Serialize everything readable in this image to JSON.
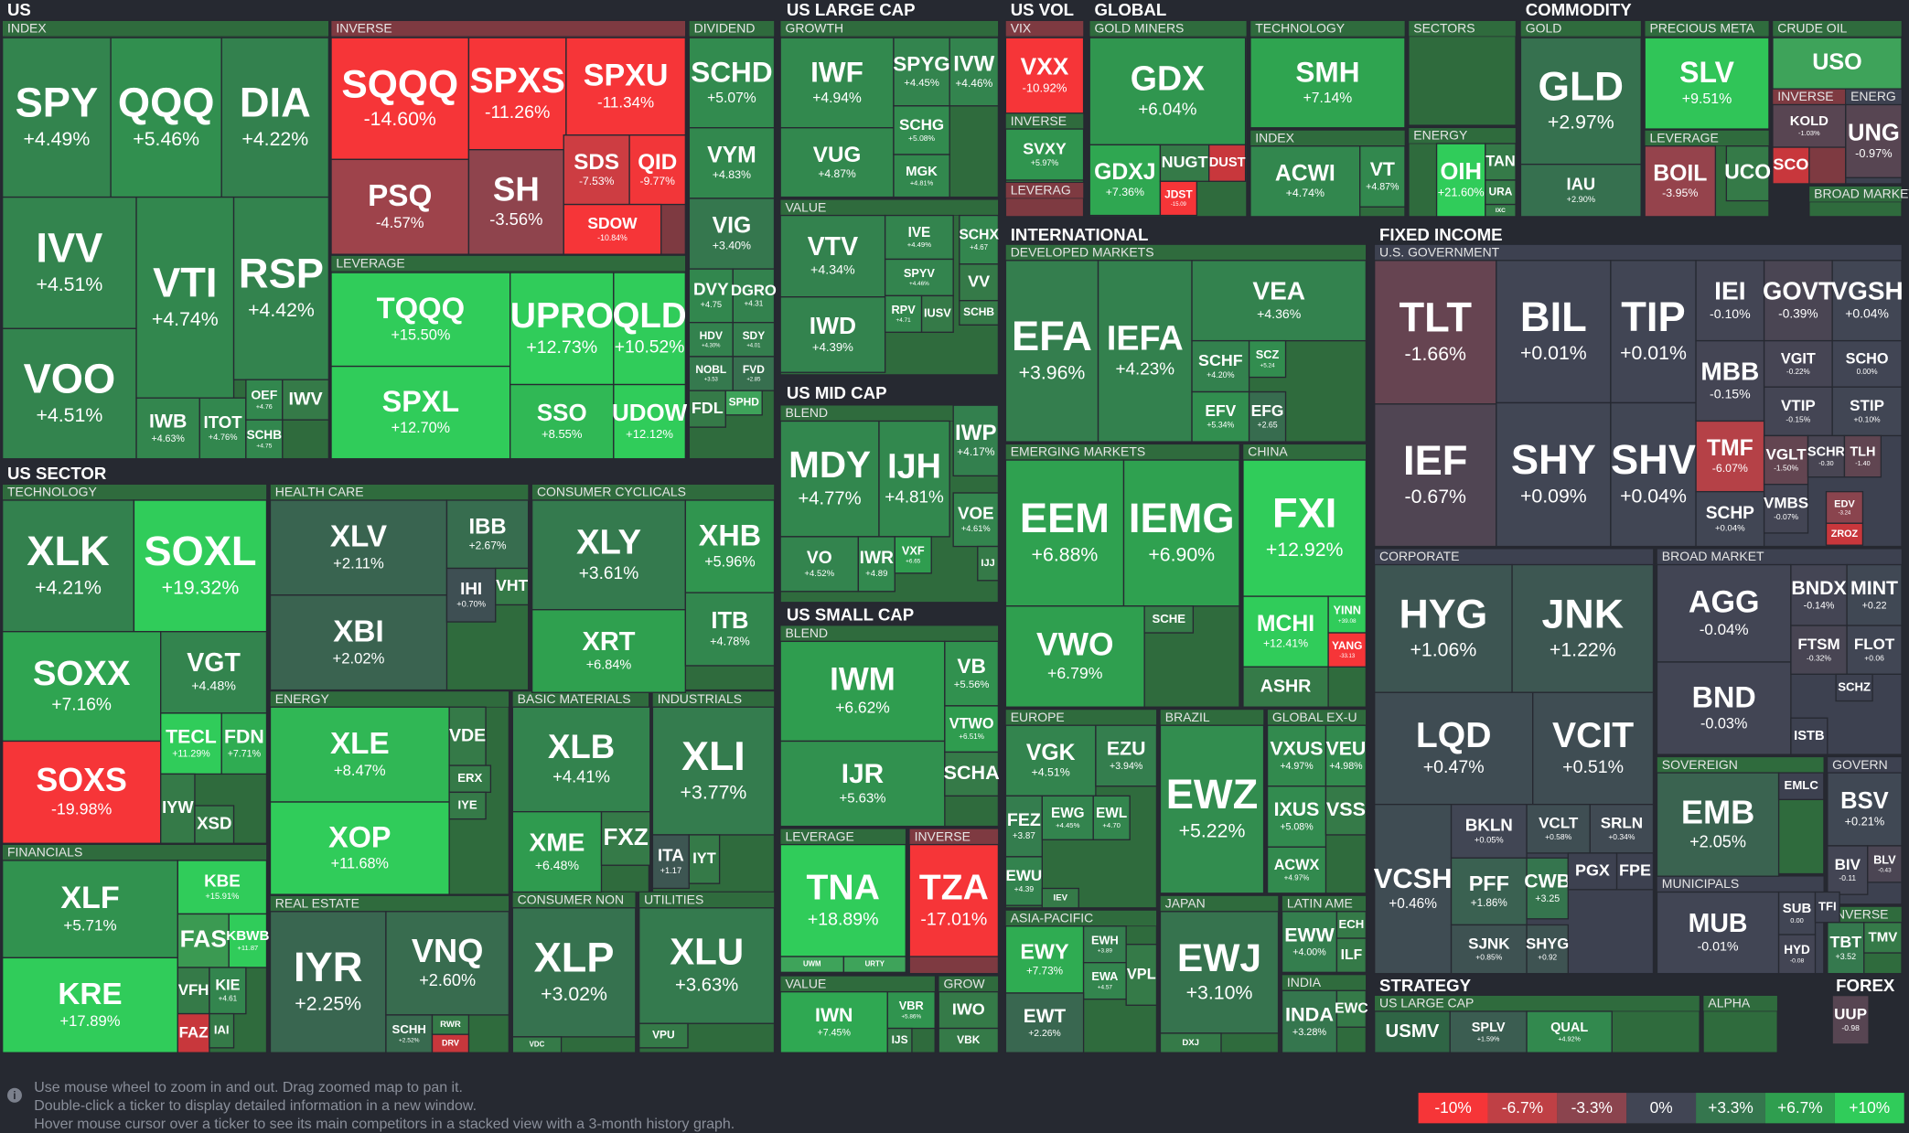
{
  "sections": [
    {
      "title": "US"
    },
    {
      "title": "US SECTOR"
    },
    {
      "title": "US LARGE CAP"
    },
    {
      "title": "US MID CAP"
    },
    {
      "title": "US SMALL CAP"
    },
    {
      "title": "US VOL"
    },
    {
      "title": "GLOBAL"
    },
    {
      "title": "COMMODITY"
    },
    {
      "title": "INTERNATIONAL"
    },
    {
      "title": "FIXED INCOME"
    },
    {
      "title": "STRATEGY"
    },
    {
      "title": "FOREX"
    }
  ],
  "groups": [
    {
      "label": "INDEX"
    },
    {
      "label": "INVERSE"
    },
    {
      "label": "LEVERAGE"
    },
    {
      "label": "DIVIDEND"
    },
    {
      "label": "TECHNOLOGY"
    },
    {
      "label": "FINANCIALS"
    },
    {
      "label": "HEALTH CARE"
    },
    {
      "label": "ENERGY"
    },
    {
      "label": "CONSUMER CYCLICALS"
    },
    {
      "label": "BASIC MATERIALS"
    },
    {
      "label": "INDUSTRIALS"
    },
    {
      "label": "REAL ESTATE"
    },
    {
      "label": "CONSUMER NON"
    },
    {
      "label": "UTILITIES"
    },
    {
      "label": "GROWTH"
    },
    {
      "label": "VALUE"
    },
    {
      "label": "BLEND"
    },
    {
      "label": "BLEND"
    },
    {
      "label": "LEVERAGE"
    },
    {
      "label": "INVERSE"
    },
    {
      "label": "VALUE"
    },
    {
      "label": "GROW"
    },
    {
      "label": "VIX"
    },
    {
      "label": "INVERSE"
    },
    {
      "label": "LEVERAG"
    },
    {
      "label": "GOLD MINERS"
    },
    {
      "label": "TECHNOLOGY"
    },
    {
      "label": "INDEX"
    },
    {
      "label": "SECTORS"
    },
    {
      "label": "ENERGY"
    },
    {
      "label": "GOLD"
    },
    {
      "label": "PRECIOUS META"
    },
    {
      "label": "LEVERAGE"
    },
    {
      "label": "CRUDE OIL"
    },
    {
      "label": "INVERSE"
    },
    {
      "label": "ENERG"
    },
    {
      "label": "BROAD MARKET"
    },
    {
      "label": "DEVELOPED MARKETS"
    },
    {
      "label": "EMERGING MARKETS"
    },
    {
      "label": "CHINA"
    },
    {
      "label": "EUROPE"
    },
    {
      "label": "BRAZIL"
    },
    {
      "label": "GLOBAL EX-U"
    },
    {
      "label": "ASIA-PACIFIC"
    },
    {
      "label": "JAPAN"
    },
    {
      "label": "LATIN AME"
    },
    {
      "label": "INDIA"
    },
    {
      "label": "U.S. GOVERNMENT"
    },
    {
      "label": "CORPORATE"
    },
    {
      "label": "BROAD MARKET"
    },
    {
      "label": "SOVEREIGN"
    },
    {
      "label": "GOVERN"
    },
    {
      "label": "MUNICIPALS"
    },
    {
      "label": "INVERSE"
    },
    {
      "label": "US LARGE CAP"
    },
    {
      "label": "ALPHA"
    }
  ],
  "tiles": [
    {
      "ticker": "SPY",
      "change": "+4.49%"
    },
    {
      "ticker": "QQQ",
      "change": "+5.46%"
    },
    {
      "ticker": "DIA",
      "change": "+4.22%"
    },
    {
      "ticker": "IVV",
      "change": "+4.51%"
    },
    {
      "ticker": "VOO",
      "change": "+4.51%"
    },
    {
      "ticker": "VTI",
      "change": "+4.74%"
    },
    {
      "ticker": "RSP",
      "change": "+4.42%"
    },
    {
      "ticker": "IWB",
      "change": "+4.63%"
    },
    {
      "ticker": "ITOT",
      "change": "+4.76%"
    },
    {
      "ticker": "OEF",
      "change": "+4.76"
    },
    {
      "ticker": "IWV"
    },
    {
      "ticker": "SCHB",
      "change": "+4.75"
    },
    {
      "ticker": "SQQQ",
      "change": "-14.60%"
    },
    {
      "ticker": "SPXS",
      "change": "-11.26%"
    },
    {
      "ticker": "SPXU",
      "change": "-11.34%"
    },
    {
      "ticker": "PSQ",
      "change": "-4.57%"
    },
    {
      "ticker": "SH",
      "change": "-3.56%"
    },
    {
      "ticker": "SDS",
      "change": "-7.53%"
    },
    {
      "ticker": "QID",
      "change": "-9.77%"
    },
    {
      "ticker": "SDOW",
      "change": "-10.84%"
    },
    {
      "ticker": "TQQQ",
      "change": "+15.50%"
    },
    {
      "ticker": "SPXL",
      "change": "+12.70%"
    },
    {
      "ticker": "UPRO",
      "change": "+12.73%"
    },
    {
      "ticker": "QLD",
      "change": "+10.52%"
    },
    {
      "ticker": "SSO",
      "change": "+8.55%"
    },
    {
      "ticker": "UDOW",
      "change": "+12.12%"
    },
    {
      "ticker": "SCHD",
      "change": "+5.07%"
    },
    {
      "ticker": "VYM",
      "change": "+4.83%"
    },
    {
      "ticker": "VIG",
      "change": "+3.40%"
    },
    {
      "ticker": "DVY",
      "change": "+4.75"
    },
    {
      "ticker": "DGRO",
      "change": "+4.31"
    },
    {
      "ticker": "HDV",
      "change": "+4.30%"
    },
    {
      "ticker": "SDY",
      "change": "+4.01"
    },
    {
      "ticker": "NOBL",
      "change": "+3.53"
    },
    {
      "ticker": "FVD",
      "change": "+2.85"
    },
    {
      "ticker": "FDL"
    },
    {
      "ticker": "SPHD"
    },
    {
      "ticker": "XLK",
      "change": "+4.21%"
    },
    {
      "ticker": "SOXL",
      "change": "+19.32%"
    },
    {
      "ticker": "SOXX",
      "change": "+7.16%"
    },
    {
      "ticker": "SOXS",
      "change": "-19.98%"
    },
    {
      "ticker": "VGT",
      "change": "+4.48%"
    },
    {
      "ticker": "TECL",
      "change": "+11.29%"
    },
    {
      "ticker": "FDN",
      "change": "+7.71%"
    },
    {
      "ticker": "IYW"
    },
    {
      "ticker": "XSD"
    },
    {
      "ticker": "XLF",
      "change": "+5.71%"
    },
    {
      "ticker": "KRE",
      "change": "+17.89%"
    },
    {
      "ticker": "KBE",
      "change": "+15.91%"
    },
    {
      "ticker": "FAS"
    },
    {
      "ticker": "KBWB",
      "change": "+11.87"
    },
    {
      "ticker": "VFH"
    },
    {
      "ticker": "KIE",
      "change": "+4.61"
    },
    {
      "ticker": "FAZ"
    },
    {
      "ticker": "IAI"
    },
    {
      "ticker": "XLV",
      "change": "+2.11%"
    },
    {
      "ticker": "XBI",
      "change": "+2.02%"
    },
    {
      "ticker": "IBB",
      "change": "+2.67%"
    },
    {
      "ticker": "IHI",
      "change": "+0.70%"
    },
    {
      "ticker": "VHT"
    },
    {
      "ticker": "XLE",
      "change": "+8.47%"
    },
    {
      "ticker": "XOP",
      "change": "+11.68%"
    },
    {
      "ticker": "VDE"
    },
    {
      "ticker": "ERX"
    },
    {
      "ticker": "IYE"
    },
    {
      "ticker": "XLY",
      "change": "+3.61%"
    },
    {
      "ticker": "XRT",
      "change": "+6.84%"
    },
    {
      "ticker": "XHB",
      "change": "+5.96%"
    },
    {
      "ticker": "ITB",
      "change": "+4.78%"
    },
    {
      "ticker": "XLB",
      "change": "+4.41%"
    },
    {
      "ticker": "XME",
      "change": "+6.48%"
    },
    {
      "ticker": "FXZ"
    },
    {
      "ticker": "XLI",
      "change": "+3.77%"
    },
    {
      "ticker": "ITA",
      "change": "+1.17"
    },
    {
      "ticker": "IYT"
    },
    {
      "ticker": "IYR",
      "change": "+2.25%"
    },
    {
      "ticker": "VNQ",
      "change": "+2.60%"
    },
    {
      "ticker": "SCHH",
      "change": "+2.52%"
    },
    {
      "ticker": "RWR"
    },
    {
      "ticker": "DRV"
    },
    {
      "ticker": "XLP",
      "change": "+3.02%"
    },
    {
      "ticker": "VDC"
    },
    {
      "ticker": "XLU",
      "change": "+3.63%"
    },
    {
      "ticker": "VPU"
    },
    {
      "ticker": "IWF",
      "change": "+4.94%"
    },
    {
      "ticker": "VUG",
      "change": "+4.87%"
    },
    {
      "ticker": "SPYG",
      "change": "+4.45%"
    },
    {
      "ticker": "IVW",
      "change": "+4.46%"
    },
    {
      "ticker": "SCHG",
      "change": "+5.08%"
    },
    {
      "ticker": "MGK",
      "change": "+4.81%"
    },
    {
      "ticker": "VTV",
      "change": "+4.34%"
    },
    {
      "ticker": "IWD",
      "change": "+4.39%"
    },
    {
      "ticker": "IVE",
      "change": "+4.49%"
    },
    {
      "ticker": "SPYV",
      "change": "+4.46%"
    },
    {
      "ticker": "RPV",
      "change": "+4.71"
    },
    {
      "ticker": "IUSV"
    },
    {
      "ticker": "SCHX",
      "change": "+4.67"
    },
    {
      "ticker": "VV"
    },
    {
      "ticker": "SCHB"
    },
    {
      "ticker": "MDY",
      "change": "+4.77%"
    },
    {
      "ticker": "IJH",
      "change": "+4.81%"
    },
    {
      "ticker": "VO",
      "change": "+4.52%"
    },
    {
      "ticker": "IWR",
      "change": "+4.89"
    },
    {
      "ticker": "VXF",
      "change": "+6.65"
    },
    {
      "ticker": "IWP",
      "change": "+4.17%"
    },
    {
      "ticker": "VOE",
      "change": "+4.61%"
    },
    {
      "ticker": "IJJ"
    },
    {
      "ticker": "IWM",
      "change": "+6.62%"
    },
    {
      "ticker": "IJR",
      "change": "+5.63%"
    },
    {
      "ticker": "VB",
      "change": "+5.56%"
    },
    {
      "ticker": "VTWO",
      "change": "+6.51%"
    },
    {
      "ticker": "SCHA"
    },
    {
      "ticker": "TNA",
      "change": "+18.89%"
    },
    {
      "ticker": "UWM"
    },
    {
      "ticker": "URTY"
    },
    {
      "ticker": "TZA",
      "change": "-17.01%"
    },
    {
      "ticker": "IWN",
      "change": "+7.45%"
    },
    {
      "ticker": "VBR",
      "change": "+5.86%"
    },
    {
      "ticker": "IJS"
    },
    {
      "ticker": "IWO"
    },
    {
      "ticker": "VBK"
    },
    {
      "ticker": "VXX",
      "change": "-10.92%"
    },
    {
      "ticker": "SVXY",
      "change": "+5.97%"
    },
    {
      "ticker": "GDX",
      "change": "+6.04%"
    },
    {
      "ticker": "GDXJ",
      "change": "+7.36%"
    },
    {
      "ticker": "NUGT"
    },
    {
      "ticker": "DUST"
    },
    {
      "ticker": "JDST",
      "change": "-15.09"
    },
    {
      "ticker": "SMH",
      "change": "+7.14%"
    },
    {
      "ticker": "ACWI",
      "change": "+4.74%"
    },
    {
      "ticker": "VT",
      "change": "+4.87%"
    },
    {
      "ticker": "OIH",
      "change": "+21.60%"
    },
    {
      "ticker": "TAN"
    },
    {
      "ticker": "URA"
    },
    {
      "ticker": "IXC"
    },
    {
      "ticker": "GLD",
      "change": "+2.97%"
    },
    {
      "ticker": "IAU",
      "change": "+2.90%"
    },
    {
      "ticker": "SLV",
      "change": "+9.51%"
    },
    {
      "ticker": "BOIL",
      "change": "-3.95%"
    },
    {
      "ticker": "UCO"
    },
    {
      "ticker": "USO"
    },
    {
      "ticker": "KOLD",
      "change": "-1.03%"
    },
    {
      "ticker": "SCO"
    },
    {
      "ticker": "UNG",
      "change": "-0.97%"
    },
    {
      "ticker": "EFA",
      "change": "+3.96%"
    },
    {
      "ticker": "IEFA",
      "change": "+4.23%"
    },
    {
      "ticker": "VEA",
      "change": "+4.36%"
    },
    {
      "ticker": "SCHF",
      "change": "+4.20%"
    },
    {
      "ticker": "SCZ",
      "change": "+5.24"
    },
    {
      "ticker": "EFV",
      "change": "+5.34%"
    },
    {
      "ticker": "EFG",
      "change": "+2.65"
    },
    {
      "ticker": "EEM",
      "change": "+6.88%"
    },
    {
      "ticker": "IEMG",
      "change": "+6.90%"
    },
    {
      "ticker": "VWO",
      "change": "+6.79%"
    },
    {
      "ticker": "SCHE"
    },
    {
      "ticker": "FXI",
      "change": "+12.92%"
    },
    {
      "ticker": "MCHI",
      "change": "+12.41%"
    },
    {
      "ticker": "YINN",
      "change": "+39.08"
    },
    {
      "ticker": "YANG",
      "change": "-33.13"
    },
    {
      "ticker": "ASHR"
    },
    {
      "ticker": "VGK",
      "change": "+4.51%"
    },
    {
      "ticker": "EZU",
      "change": "+3.94%"
    },
    {
      "ticker": "FEZ",
      "change": "+3.87"
    },
    {
      "ticker": "EWG",
      "change": "+4.45%"
    },
    {
      "ticker": "EWL",
      "change": "+4.70"
    },
    {
      "ticker": "EWU",
      "change": "+4.39"
    },
    {
      "ticker": "IEV"
    },
    {
      "ticker": "EWZ",
      "change": "+5.22%"
    },
    {
      "ticker": "VXUS",
      "change": "+4.97%"
    },
    {
      "ticker": "VEU",
      "change": "+4.98%"
    },
    {
      "ticker": "IXUS",
      "change": "+5.08%"
    },
    {
      "ticker": "VSS"
    },
    {
      "ticker": "ACWX",
      "change": "+4.97%"
    },
    {
      "ticker": "EWY",
      "change": "+7.73%"
    },
    {
      "ticker": "EWH",
      "change": "+3.89"
    },
    {
      "ticker": "EWA",
      "change": "+4.57"
    },
    {
      "ticker": "VPL"
    },
    {
      "ticker": "EWT",
      "change": "+2.26%"
    },
    {
      "ticker": "EWJ",
      "change": "+3.10%"
    },
    {
      "ticker": "DXJ"
    },
    {
      "ticker": "EWW",
      "change": "+4.00%"
    },
    {
      "ticker": "ECH"
    },
    {
      "ticker": "ILF"
    },
    {
      "ticker": "INDA",
      "change": "+3.28%"
    },
    {
      "ticker": "EWC"
    },
    {
      "ticker": "TLT",
      "change": "-1.66%"
    },
    {
      "ticker": "IEF",
      "change": "-0.67%"
    },
    {
      "ticker": "BIL",
      "change": "+0.01%"
    },
    {
      "ticker": "SHY",
      "change": "+0.09%"
    },
    {
      "ticker": "TIP",
      "change": "+0.01%"
    },
    {
      "ticker": "SHV",
      "change": "+0.04%"
    },
    {
      "ticker": "IEI",
      "change": "-0.10%"
    },
    {
      "ticker": "GOVT",
      "change": "-0.39%"
    },
    {
      "ticker": "VGSH",
      "change": "+0.04%"
    },
    {
      "ticker": "MBB",
      "change": "-0.15%"
    },
    {
      "ticker": "VGIT",
      "change": "-0.22%"
    },
    {
      "ticker": "SCHO",
      "change": "0.00%"
    },
    {
      "ticker": "VTIP",
      "change": "-0.15%"
    },
    {
      "ticker": "STIP",
      "change": "+0.10%"
    },
    {
      "ticker": "TMF",
      "change": "-6.07%"
    },
    {
      "ticker": "VGLT",
      "change": "-1.50%"
    },
    {
      "ticker": "SCHR",
      "change": "-0.30"
    },
    {
      "ticker": "TLH",
      "change": "-1.40"
    },
    {
      "ticker": "SCHP",
      "change": "+0.04%"
    },
    {
      "ticker": "VMBS",
      "change": "-0.07%"
    },
    {
      "ticker": "EDV",
      "change": "-3.24"
    },
    {
      "ticker": "ZROZ"
    },
    {
      "ticker": "HYG",
      "change": "+1.06%"
    },
    {
      "ticker": "JNK",
      "change": "+1.22%"
    },
    {
      "ticker": "LQD",
      "change": "+0.47%"
    },
    {
      "ticker": "VCIT",
      "change": "+0.51%"
    },
    {
      "ticker": "VCSH",
      "change": "+0.46%"
    },
    {
      "ticker": "BKLN",
      "change": "+0.05%"
    },
    {
      "ticker": "VCLT",
      "change": "+0.58%"
    },
    {
      "ticker": "SRLN",
      "change": "+0.34%"
    },
    {
      "ticker": "PFF",
      "change": "+1.86%"
    },
    {
      "ticker": "CWB",
      "change": "+3.25"
    },
    {
      "ticker": "PGX"
    },
    {
      "ticker": "FPE"
    },
    {
      "ticker": "SJNK",
      "change": "+0.85%"
    },
    {
      "ticker": "SHYG",
      "change": "+0.92"
    },
    {
      "ticker": "AGG",
      "change": "-0.04%"
    },
    {
      "ticker": "BND",
      "change": "-0.03%"
    },
    {
      "ticker": "BNDX",
      "change": "-0.14%"
    },
    {
      "ticker": "MINT",
      "change": "+0.22"
    },
    {
      "ticker": "FTSM",
      "change": "-0.32%"
    },
    {
      "ticker": "FLOT",
      "change": "+0.06"
    },
    {
      "ticker": "SCHZ"
    },
    {
      "ticker": "ISTB"
    },
    {
      "ticker": "EMB",
      "change": "+2.05%"
    },
    {
      "ticker": "EMLC"
    },
    {
      "ticker": "BSV",
      "change": "+0.21%"
    },
    {
      "ticker": "BIV",
      "change": "-0.11"
    },
    {
      "ticker": "BLV",
      "change": "-0.43"
    },
    {
      "ticker": "MUB",
      "change": "-0.01%"
    },
    {
      "ticker": "SUB",
      "change": "0.00"
    },
    {
      "ticker": "TFI"
    },
    {
      "ticker": "HYD",
      "change": "-0.08"
    },
    {
      "ticker": "TBT",
      "change": "+3.52"
    },
    {
      "ticker": "TMV"
    },
    {
      "ticker": "USMV"
    },
    {
      "ticker": "SPLV",
      "change": "+1.59%"
    },
    {
      "ticker": "QUAL",
      "change": "+4.92%"
    },
    {
      "ticker": "UUP",
      "change": "-0.98"
    }
  ],
  "help": [
    "Use mouse wheel to zoom in and out. Drag zoomed map to pan it.",
    "Double-click a ticker to display detailed information in a new window.",
    "Hover mouse cursor over a ticker to see its main competitors in a stacked view with a 3-month history graph."
  ],
  "legend": [
    "-10%",
    "-6.7%",
    "-3.3%",
    "0%",
    "+3.3%",
    "+6.7%",
    "+10%"
  ]
}
